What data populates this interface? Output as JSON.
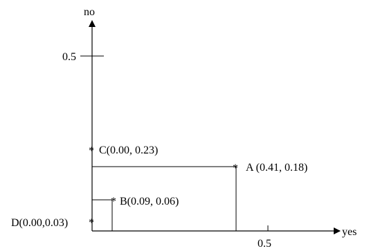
{
  "axes": {
    "x_label": "yes",
    "y_label": "no",
    "x_tick_label": "0.5",
    "y_tick_label": "0.5"
  },
  "chart_data": {
    "type": "scatter",
    "xlabel": "yes",
    "ylabel": "no",
    "ticks": {
      "x": [
        0.5
      ],
      "y": [
        0.5
      ]
    },
    "points": [
      {
        "label": "A (0.41, 0.18)",
        "x": 0.41,
        "y": 0.18
      },
      {
        "label": "B(0.09, 0.06)",
        "x": 0.09,
        "y": 0.06
      },
      {
        "label": "C(0.00, 0.23)",
        "x": 0.0,
        "y": 0.23
      },
      {
        "label": "D(0.00,0.03)",
        "x": 0.0,
        "y": 0.03
      }
    ]
  }
}
